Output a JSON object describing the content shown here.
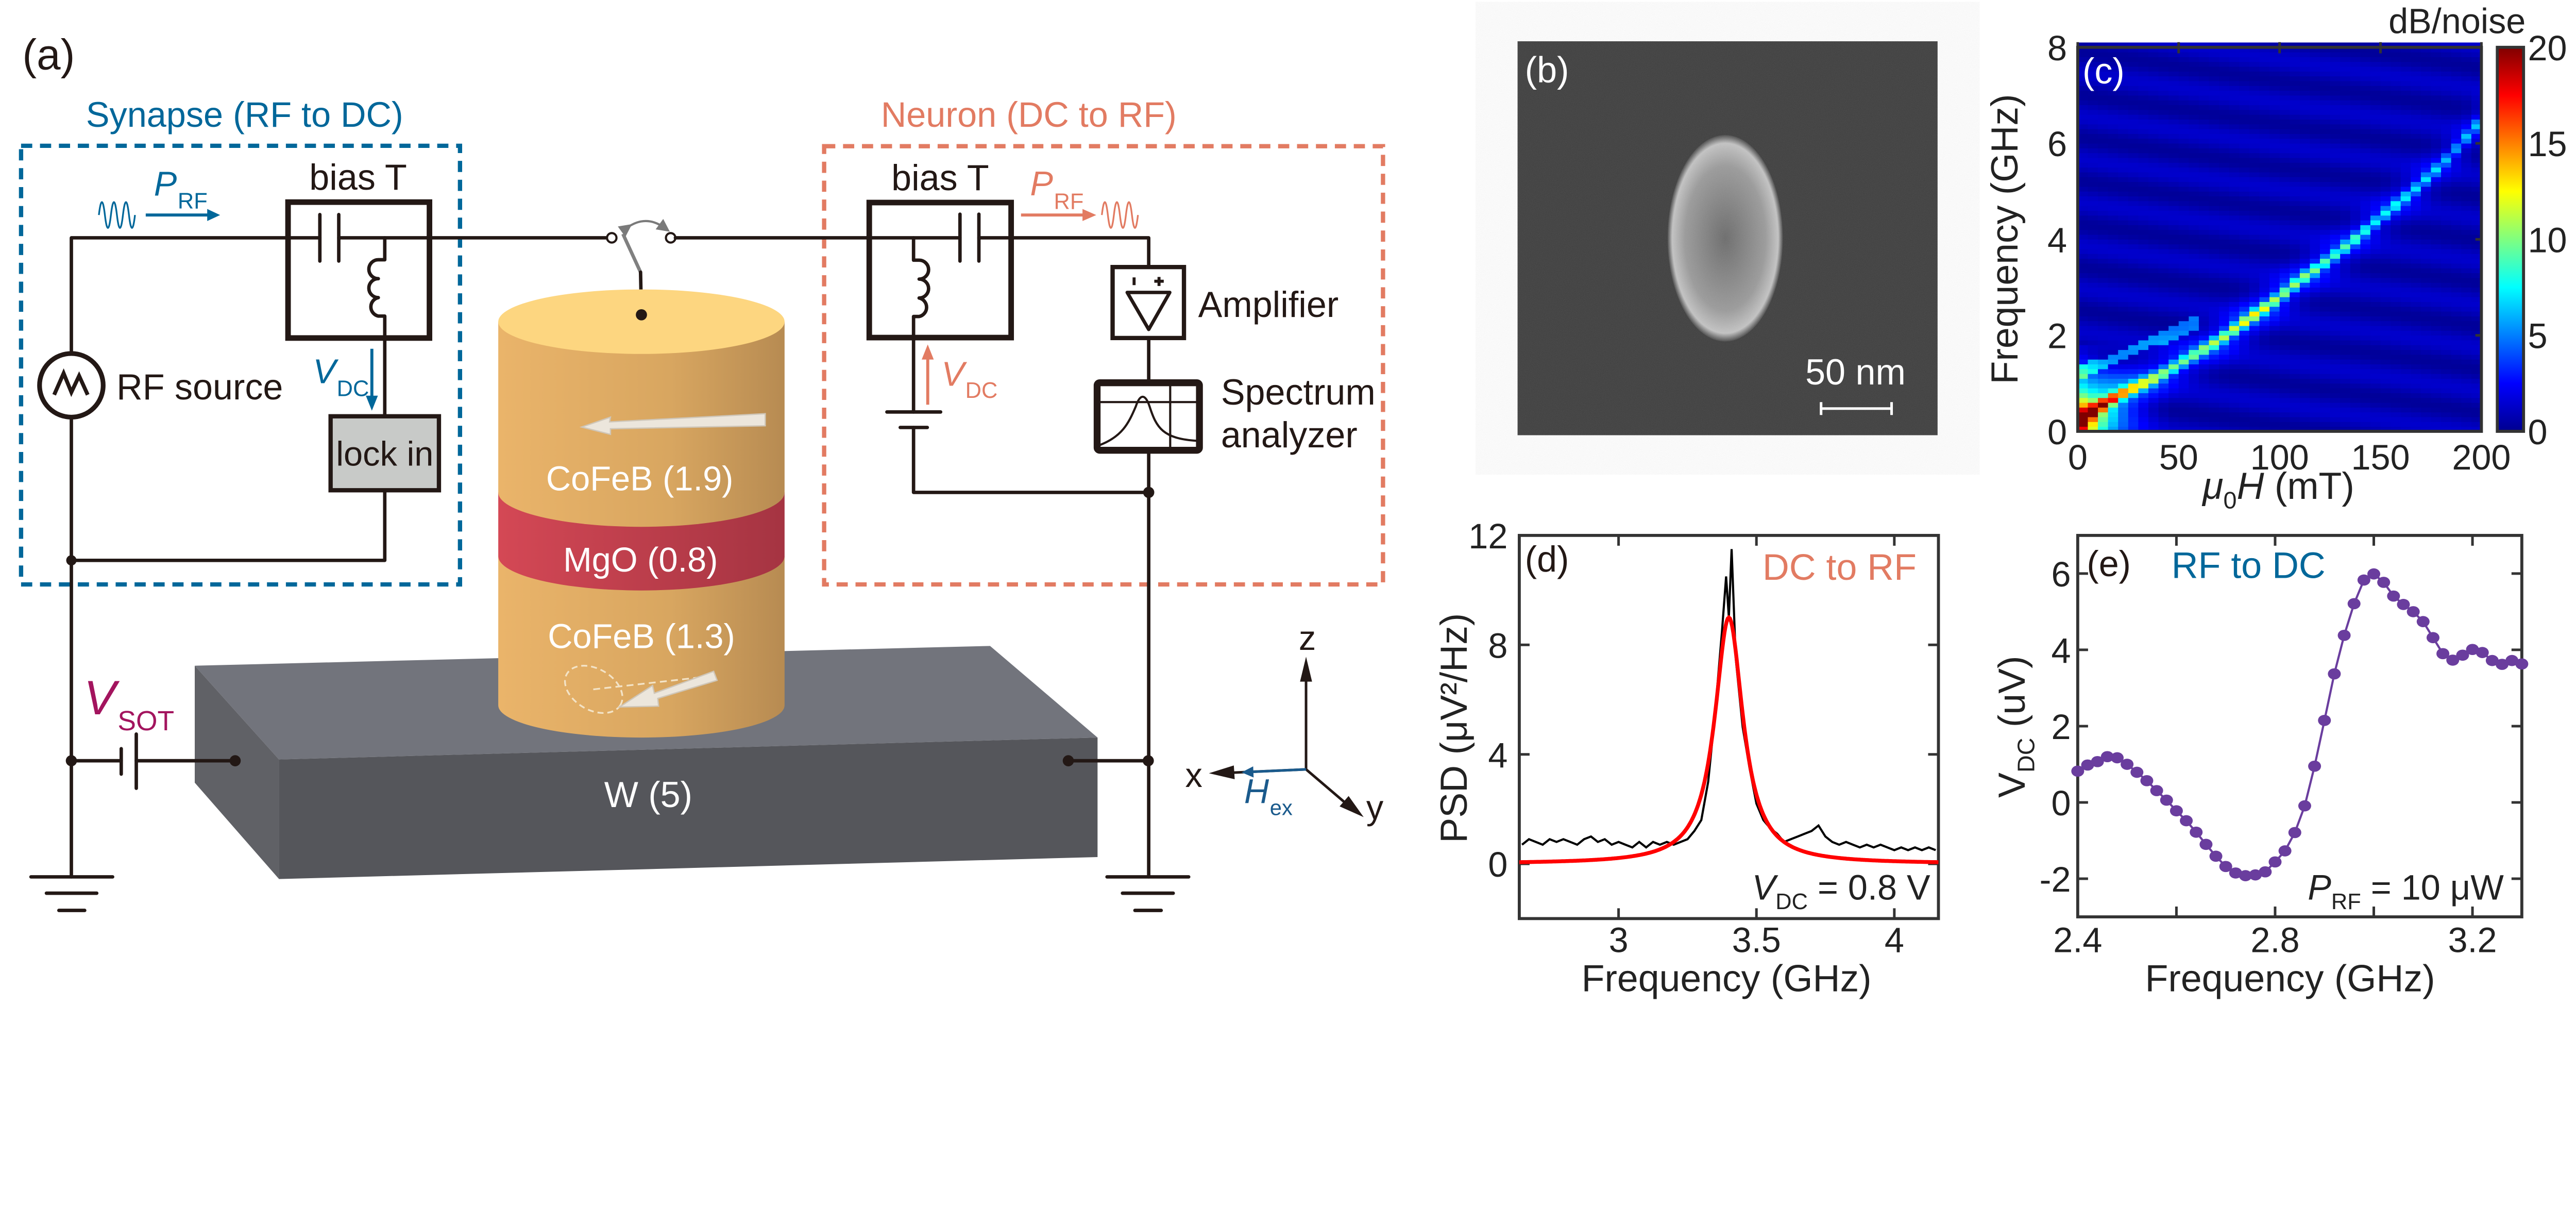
{
  "panel_a": {
    "label": "(a)",
    "synapse_title": "Synapse (RF to DC)",
    "neuron_title": "Neuron (DC to RF)",
    "bias_t_left": "bias T",
    "bias_t_right": "bias T",
    "rf_source": "RF source",
    "lock_in": "lock in",
    "amplifier": "Amplifier",
    "spectrum_analyzer_line1": "Spectrum",
    "spectrum_analyzer_line2": "analyzer",
    "p_rf_left": {
      "main": "P",
      "sub": "RF"
    },
    "p_rf_right": {
      "main": "P",
      "sub": "RF"
    },
    "v_dc_left": {
      "main": "V",
      "sub": "DC"
    },
    "v_dc_right": {
      "main": "V",
      "sub": "DC"
    },
    "v_sot": {
      "main": "V",
      "sub": "SOT"
    },
    "layers": [
      "CoFeB (1.9)",
      "MgO (0.8)",
      "CoFeB (1.3)"
    ],
    "substrate": "W (5)",
    "axes": {
      "x": "x",
      "y": "y",
      "z": "z"
    },
    "h_ex": {
      "main": "H",
      "sub": "ex"
    },
    "colors": {
      "synapse_blue": "#00679a",
      "neuron_orange": "#e27b62",
      "v_sot_magenta": "#a3145e",
      "h_ex_blue": "#1a5a8c",
      "cofeb": "#e3b068",
      "mgo": "#cc4250",
      "tungsten": "#5a5b60",
      "lock_in_fill": "#c8cac8"
    }
  },
  "panel_b": {
    "label": "(b)",
    "scale_bar": "50 nm"
  },
  "chart_data": [
    {
      "panel": "(c)",
      "type": "heatmap",
      "xlabel": {
        "mu": "μ",
        "sub": "0",
        "h": "H",
        "unit": " (mT)"
      },
      "ylabel": "Frequency (GHz)",
      "xlim": [
        0,
        200
      ],
      "ylim": [
        0,
        8
      ],
      "xticks": [
        "0",
        "50",
        "100",
        "150",
        "200"
      ],
      "yticks": [
        "0",
        "2",
        "4",
        "6",
        "8"
      ],
      "colorbar": {
        "label": "dB/noise",
        "range": [
          0,
          20
        ],
        "ticks": [
          "0",
          "5",
          "10",
          "15",
          "20"
        ],
        "colormap": "jet"
      },
      "peak_field_mT": [
        0,
        10,
        20,
        30,
        40,
        50,
        60,
        70,
        80,
        90,
        100,
        110,
        120,
        130,
        140,
        150,
        160,
        170,
        180,
        190,
        200
      ],
      "peak_frequency_GHz": [
        0.2,
        0.5,
        0.75,
        0.95,
        1.15,
        1.4,
        1.65,
        1.9,
        2.2,
        2.5,
        2.8,
        3.15,
        3.45,
        3.75,
        4.1,
        4.45,
        4.8,
        5.15,
        5.55,
        6.0,
        6.5
      ],
      "peak_intensity_dB": [
        20,
        14,
        11,
        9,
        8,
        7,
        7,
        8,
        9,
        9,
        8,
        7,
        7,
        6,
        6,
        5,
        5,
        5,
        4,
        4,
        4
      ],
      "background_dB": 1
    },
    {
      "panel": "(d)",
      "type": "line",
      "annotation": "DC to RF",
      "condition": {
        "main": "V",
        "sub": "DC",
        "rest": " = 0.8 V"
      },
      "xlabel": "Frequency (GHz)",
      "ylabel": "PSD (μV²/Hz)",
      "xlim": [
        2.64,
        4.16
      ],
      "ylim": [
        -2,
        12
      ],
      "xticks": [
        3,
        3.5,
        4
      ],
      "xtick_labels": [
        "3",
        "3.5",
        "4"
      ],
      "yticks": [
        0,
        4,
        8,
        12
      ],
      "ytick_labels": [
        "0",
        "4",
        "8",
        "12"
      ],
      "measured": {
        "color": "#000000",
        "x": [
          2.65,
          2.675,
          2.7,
          2.725,
          2.75,
          2.775,
          2.8,
          2.825,
          2.85,
          2.875,
          2.9,
          2.925,
          2.95,
          2.975,
          3.0,
          3.025,
          3.05,
          3.075,
          3.1,
          3.125,
          3.15,
          3.175,
          3.2,
          3.225,
          3.25,
          3.275,
          3.3,
          3.325,
          3.35,
          3.375,
          3.39,
          3.4,
          3.41,
          3.425,
          3.45,
          3.475,
          3.5,
          3.525,
          3.55,
          3.575,
          3.6,
          3.625,
          3.65,
          3.675,
          3.7,
          3.725,
          3.75,
          3.775,
          3.8,
          3.825,
          3.85,
          3.875,
          3.9,
          3.925,
          3.95,
          3.975,
          4.0,
          4.025,
          4.05,
          4.075,
          4.1,
          4.125,
          4.15
        ],
        "y": [
          0.7,
          0.9,
          0.8,
          0.7,
          0.9,
          0.8,
          0.9,
          0.8,
          0.7,
          0.9,
          1.0,
          0.8,
          0.9,
          0.7,
          0.8,
          0.7,
          0.6,
          0.8,
          0.6,
          0.8,
          0.7,
          0.8,
          0.7,
          0.8,
          0.9,
          1.2,
          1.6,
          3.0,
          5.5,
          8.5,
          10.5,
          9.0,
          11.5,
          7.5,
          5.0,
          3.5,
          2.2,
          1.6,
          1.3,
          1.1,
          0.8,
          0.9,
          1.0,
          1.1,
          1.2,
          1.4,
          1.0,
          0.8,
          0.7,
          0.8,
          0.7,
          0.6,
          0.7,
          0.6,
          0.7,
          0.6,
          0.5,
          0.6,
          0.5,
          0.6,
          0.5,
          0.6,
          0.5
        ]
      },
      "fit": {
        "type": "lorentzian",
        "color": "#ff0000",
        "center_GHz": 3.4,
        "amplitude": 9.0,
        "fwhm_GHz": 0.125,
        "offset": 0.0
      }
    },
    {
      "panel": "(e)",
      "type": "line",
      "annotation": "RF to DC",
      "condition": {
        "main": "P",
        "sub": "RF",
        "rest": " = 10 μW"
      },
      "xlabel": "Frequency (GHz)",
      "ylabel": {
        "main": "V",
        "sub": "DC",
        "rest": " (uV)"
      },
      "xlim": [
        2.4,
        3.3
      ],
      "ylim": [
        -3,
        7
      ],
      "xticks": [
        2.4,
        2.6,
        2.8,
        3.0,
        3.2
      ],
      "xtick_labels": [
        "2.4",
        "",
        "2.8",
        "",
        "3.2"
      ],
      "yticks": [
        -2,
        0,
        2,
        4,
        6
      ],
      "ytick_labels": [
        "-2",
        "0",
        "2",
        "4",
        "6"
      ],
      "color": "#6a3d9e",
      "x": [
        2.4,
        2.42,
        2.44,
        2.46,
        2.48,
        2.5,
        2.52,
        2.54,
        2.56,
        2.58,
        2.6,
        2.62,
        2.64,
        2.66,
        2.68,
        2.7,
        2.72,
        2.74,
        2.76,
        2.78,
        2.8,
        2.82,
        2.84,
        2.86,
        2.88,
        2.9,
        2.92,
        2.94,
        2.96,
        2.98,
        3.0,
        3.02,
        3.04,
        3.06,
        3.08,
        3.1,
        3.12,
        3.14,
        3.16,
        3.18,
        3.2,
        3.22,
        3.24,
        3.26,
        3.28,
        3.3
      ],
      "y": [
        0.82,
        0.98,
        1.07,
        1.2,
        1.17,
        1.0,
        0.79,
        0.57,
        0.31,
        0.06,
        -0.22,
        -0.48,
        -0.78,
        -1.1,
        -1.41,
        -1.68,
        -1.85,
        -1.92,
        -1.9,
        -1.82,
        -1.56,
        -1.27,
        -0.79,
        -0.09,
        0.95,
        2.15,
        3.37,
        4.38,
        5.21,
        5.83,
        5.99,
        5.77,
        5.41,
        5.19,
        5.0,
        4.74,
        4.32,
        3.9,
        3.73,
        3.86,
        4.01,
        3.93,
        3.72,
        3.62,
        3.72,
        3.63
      ]
    }
  ]
}
